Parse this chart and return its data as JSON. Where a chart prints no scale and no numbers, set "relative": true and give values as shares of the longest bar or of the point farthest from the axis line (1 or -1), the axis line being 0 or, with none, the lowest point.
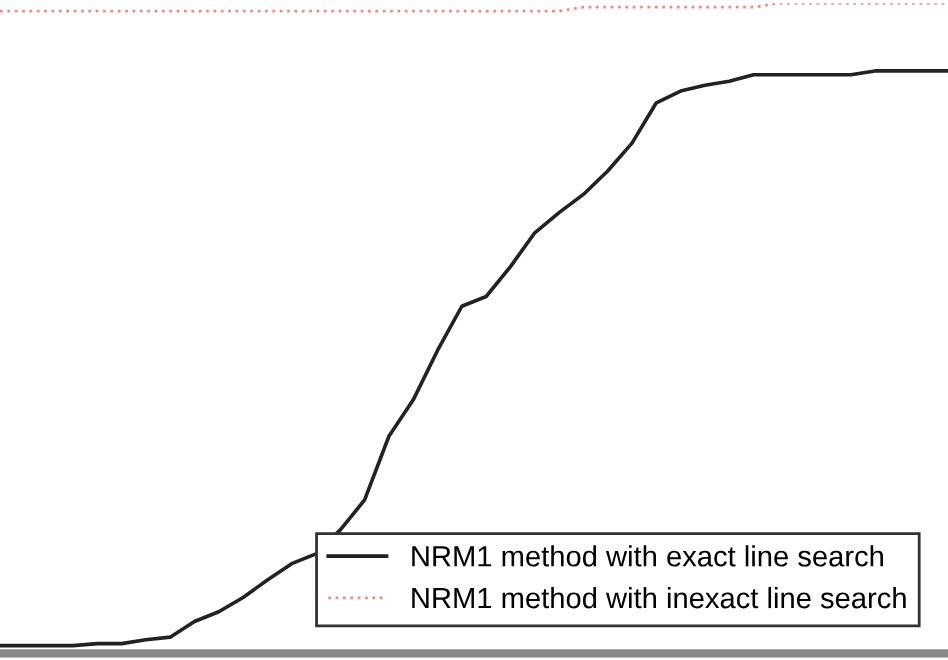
{
  "chart_data": {
    "type": "line",
    "relative": true,
    "categories": [
      null,
      null,
      null,
      null,
      null,
      null,
      null,
      null,
      null,
      null,
      null,
      null,
      null,
      null,
      null,
      null,
      null,
      null,
      null,
      null,
      null,
      null,
      null,
      null,
      null,
      null,
      null,
      null,
      null,
      null,
      null,
      null,
      null,
      null,
      null,
      null,
      null,
      null,
      null,
      null
    ],
    "series": [
      {
        "name": "NRM1 method with exact line search",
        "color": "#222222",
        "line_style": "solid",
        "values": [
          0.012,
          0.012,
          0.012,
          0.012,
          0.015,
          0.015,
          0.021,
          0.025,
          0.049,
          0.064,
          0.086,
          0.113,
          0.138,
          0.153,
          0.19,
          0.236,
          0.334,
          0.39,
          0.466,
          0.534,
          0.549,
          0.595,
          0.647,
          0.678,
          0.706,
          0.742,
          0.785,
          0.847,
          0.865,
          0.874,
          0.88,
          0.89,
          0.89,
          0.89,
          0.89,
          0.89,
          0.896,
          0.896,
          0.896,
          0.896
        ]
      },
      {
        "name": "NRM1 method with inexact line search",
        "color": "#f08a8a",
        "line_style": "dotted",
        "values": [
          0.988,
          0.988,
          0.988,
          0.988,
          0.988,
          0.988,
          0.988,
          0.988,
          0.988,
          0.988,
          0.988,
          0.988,
          0.988,
          0.988,
          0.988,
          0.988,
          0.988,
          0.988,
          0.988,
          0.988,
          0.988,
          0.988,
          0.988,
          0.988,
          0.994,
          0.994,
          0.994,
          0.994,
          0.994,
          0.994,
          0.994,
          0.994,
          1,
          1,
          1,
          1,
          1,
          1,
          1,
          1
        ]
      }
    ],
    "legend": "bottom right",
    "grid": false,
    "marker": "none"
  }
}
